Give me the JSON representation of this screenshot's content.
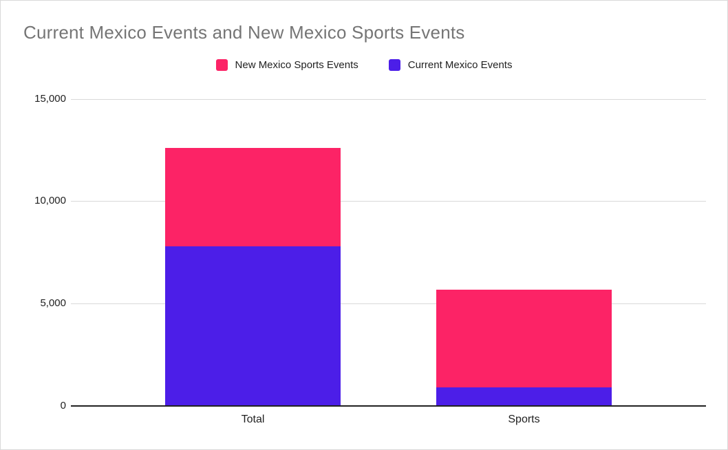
{
  "chart_data": {
    "type": "bar",
    "stacked": true,
    "title": "Current Mexico Events and New Mexico Sports Events",
    "categories": [
      "Total",
      "Sports"
    ],
    "series": [
      {
        "name": "Current Mexico Events",
        "color": "#4c1ee8",
        "values": [
          7800,
          900
        ]
      },
      {
        "name": "New Mexico Sports Events",
        "color": "#fc2366",
        "values": [
          4800,
          4800
        ]
      }
    ],
    "legend_order": [
      "New Mexico Sports Events",
      "Current Mexico Events"
    ],
    "legend_position": "top",
    "xlabel": "",
    "ylabel": "",
    "ylim": [
      0,
      15000
    ],
    "yticks": [
      "15,000",
      "10,000",
      "5,000",
      "0"
    ],
    "grid": true,
    "colors": {
      "title_text": "#757575",
      "axis_text": "#212121",
      "gridline": "#d9d9d9",
      "axis_line": "#212121",
      "background": "#ffffff"
    }
  }
}
